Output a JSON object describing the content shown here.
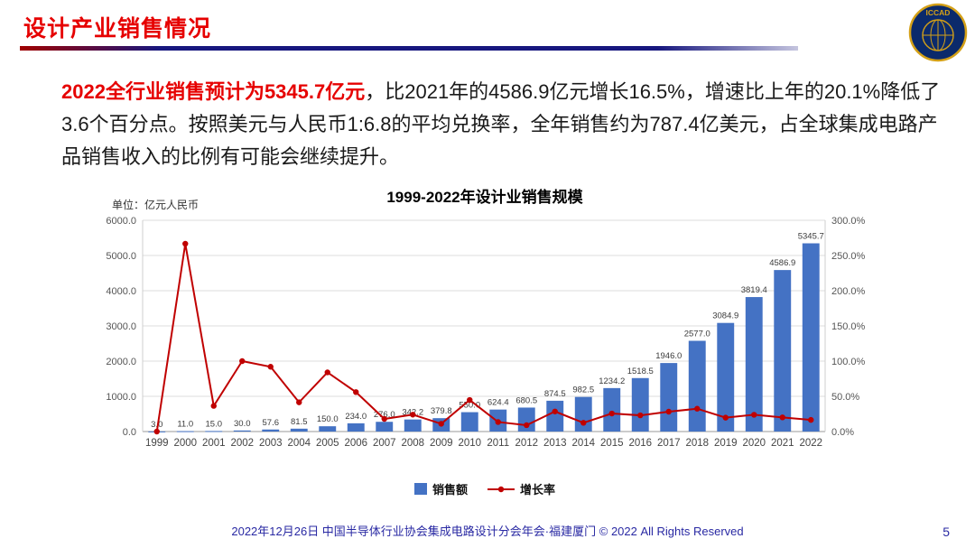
{
  "header": {
    "title": "设计产业销售情况"
  },
  "logo": {
    "label": "ICCAD"
  },
  "paragraph": {
    "highlight": "2022全行业销售预计为5345.7亿元",
    "rest": "，比2021年的4586.9亿元增长16.5%，增速比上年的20.1%降低了3.6个百分点。按照美元与人民币1:6.8的平均兑换率，全年销售约为787.4亿美元，占全球集成电路产品销售收入的比例有可能会继续提升。"
  },
  "chart": {
    "title": "1999-2022年设计业销售规模",
    "unit_label": "单位：亿元人民币",
    "bar_color": "#4472C4",
    "line_color": "#C00000",
    "legend": [
      {
        "label": "销售额"
      },
      {
        "label": "增长率"
      }
    ]
  },
  "chart_data": {
    "type": "bar+line",
    "title": "1999-2022年设计业销售规模",
    "categories": [
      1999,
      2000,
      2001,
      2002,
      2003,
      2004,
      2005,
      2006,
      2007,
      2008,
      2009,
      2010,
      2011,
      2012,
      2013,
      2014,
      2015,
      2016,
      2017,
      2018,
      2019,
      2020,
      2021,
      2022
    ],
    "series": [
      {
        "name": "销售额",
        "type": "bar",
        "axis": "left",
        "values": [
          3.0,
          11.0,
          15.0,
          30.0,
          57.6,
          81.5,
          150.0,
          234.0,
          276.0,
          342.2,
          379.8,
          550.0,
          624.4,
          680.5,
          874.5,
          982.5,
          1234.2,
          1518.5,
          1946.0,
          2577.0,
          3084.9,
          3819.4,
          4586.9,
          5345.7
        ]
      },
      {
        "name": "增长率",
        "type": "line",
        "axis": "right",
        "values_percent": [
          0.0,
          266.7,
          36.4,
          100.0,
          92.0,
          41.5,
          84.0,
          56.0,
          17.9,
          24.0,
          11.0,
          44.8,
          13.5,
          9.0,
          28.5,
          12.4,
          25.6,
          23.0,
          28.2,
          32.4,
          19.7,
          23.8,
          20.1,
          16.5
        ]
      }
    ],
    "left_axis": {
      "min": 0,
      "max": 6000,
      "step": 1000,
      "label_format": "0.0"
    },
    "right_axis": {
      "min": 0,
      "max": 300,
      "step": 50,
      "label_format": "0.0%"
    },
    "grid": true,
    "legend_position": "bottom"
  },
  "footer": {
    "text": "2022年12月26日 中国半导体行业协会集成电路设计分会年会·福建厦门 © 2022 All Rights Reserved",
    "page": "5"
  }
}
